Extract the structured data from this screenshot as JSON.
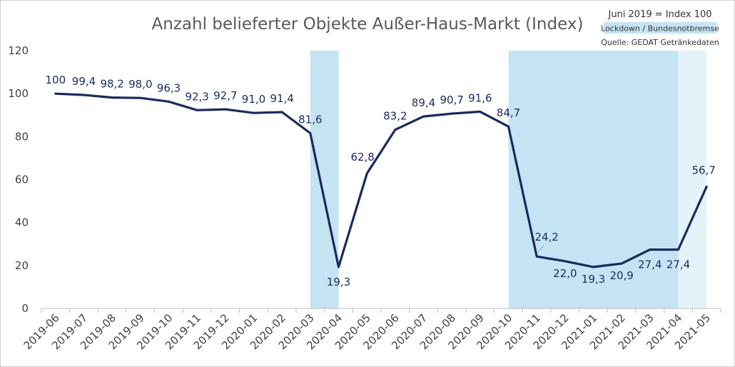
{
  "chart_data": {
    "type": "line",
    "title": "Anzahl belieferter Objekte Außer-Haus-Markt (Index)",
    "xlabel": "",
    "ylabel": "",
    "ylim": [
      0,
      120
    ],
    "yticks": [
      "0",
      "20",
      "40",
      "60",
      "80",
      "100",
      "120"
    ],
    "grid": false,
    "annotations": {
      "index_note": "Juni 2019 = Index 100",
      "legend_lockdown": "Lockdown / Bundesnotbremse",
      "source": "Quelle: GEDAT Getränkedaten"
    },
    "categories": [
      "2019-06",
      "2019-07",
      "2019-08",
      "2019-09",
      "2019-10",
      "2019-11",
      "2019-12",
      "2020-01",
      "2020-02",
      "2020-03",
      "2020-04",
      "2020-05",
      "2020-06",
      "2020-07",
      "2020-08",
      "2020-09",
      "2020-10",
      "2020-11",
      "2020-12",
      "2021-01",
      "2021-02",
      "2021-03",
      "2021-04",
      "2021-05"
    ],
    "series": [
      {
        "values": [
          100,
          99.4,
          98.2,
          98.0,
          96.3,
          92.3,
          92.7,
          91.0,
          91.4,
          81.6,
          19.3,
          62.8,
          83.2,
          89.4,
          90.7,
          91.6,
          84.7,
          24.2,
          22.0,
          19.3,
          20.9,
          27.4,
          27.4,
          56.7
        ],
        "labels": [
          "100",
          "99,4",
          "98,2",
          "98,0",
          "96,3",
          "92,3",
          "92,7",
          "91,0",
          "91,4",
          "81,6",
          "19,3",
          "62,8",
          "83,2",
          "89,4",
          "90,7",
          "91,6",
          "84,7",
          "24,2",
          "22,0",
          "19,3",
          "20,9",
          "27,4",
          "27,4",
          "56,7"
        ],
        "color": "#1b2a5e"
      }
    ],
    "shaded_periods": [
      {
        "from": "2020-03",
        "to": "2020-04",
        "color": "#c5e4f3"
      },
      {
        "from": "2020-10",
        "to": "2021-04",
        "color": "#c5e4f3"
      },
      {
        "from": "2021-04",
        "to": "2021-05",
        "color": "#e4f3fa"
      }
    ],
    "colors": {
      "line": "#1b2a5e",
      "lockdown": "#c5e4f3",
      "lockdown_light": "#e4f3fa",
      "axis": "#bfbfbf"
    }
  }
}
